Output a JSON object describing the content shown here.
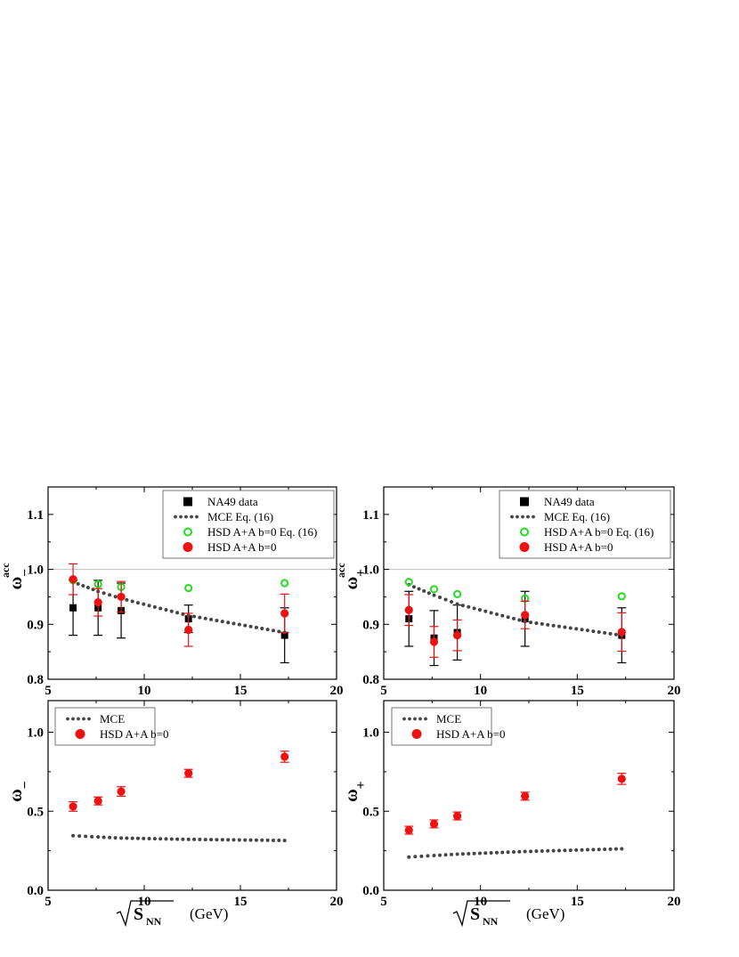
{
  "colors": {
    "nadata": "#000000",
    "mce": "#444444",
    "hsd_open": "#22dd22",
    "hsd_filled": "#ee1111",
    "refline": "#c0c0c0"
  },
  "xaxis": {
    "label": "(GeV)",
    "sqrt_subscript": "NN",
    "sqrt_letter": "S"
  },
  "chart_data": [
    {
      "type": "scatter",
      "panel": "top-left",
      "ylabel": "ω",
      "ylabel_sup": "acc",
      "ylabel_sub": "−",
      "xlim": [
        5,
        20
      ],
      "ylim": [
        0.8,
        1.15
      ],
      "xticks": [
        5,
        10,
        15,
        20
      ],
      "yticks": [
        0.8,
        0.9,
        1.0,
        1.1
      ],
      "reference_line": 1.0,
      "legend_position": "top-right",
      "series": [
        {
          "name": "NA49 data",
          "marker": "square",
          "color": "#000000",
          "x": [
            6.3,
            7.6,
            8.8,
            12.3,
            17.3
          ],
          "y": [
            0.93,
            0.93,
            0.925,
            0.91,
            0.88
          ],
          "err": [
            0.05,
            0.05,
            0.05,
            0.025,
            0.05
          ]
        },
        {
          "name": "MCE  Eq. (16)",
          "marker": "dots",
          "color": "#444444",
          "x": [
            6.3,
            7.6,
            8.8,
            12.3,
            17.3
          ],
          "y": [
            0.977,
            0.96,
            0.947,
            0.916,
            0.885
          ]
        },
        {
          "name": "HSD A+A b=0  Eq. (16)",
          "marker": "open-circle",
          "color": "#22dd22",
          "x": [
            6.3,
            7.6,
            8.8,
            12.3,
            17.3
          ],
          "y": [
            0.98,
            0.973,
            0.968,
            0.966,
            0.975
          ]
        },
        {
          "name": "HSD A+A b=0",
          "marker": "filled-circle",
          "color": "#ee1111",
          "x": [
            6.3,
            7.6,
            8.8,
            12.3,
            17.3
          ],
          "y": [
            0.982,
            0.94,
            0.95,
            0.89,
            0.92
          ],
          "err": [
            0.028,
            0.025,
            0.028,
            0.03,
            0.035
          ]
        }
      ]
    },
    {
      "type": "scatter",
      "panel": "top-right",
      "ylabel": "ω",
      "ylabel_sup": "acc",
      "ylabel_sub": "+",
      "xlim": [
        5,
        20
      ],
      "ylim": [
        0.8,
        1.15
      ],
      "xticks": [
        5,
        10,
        15,
        20
      ],
      "yticks": [
        0.8,
        0.9,
        1.0,
        1.1
      ],
      "reference_line": 1.0,
      "legend_position": "top-right",
      "series": [
        {
          "name": "NA49 data",
          "marker": "square",
          "color": "#000000",
          "x": [
            6.3,
            7.6,
            8.8,
            12.3,
            17.3
          ],
          "y": [
            0.91,
            0.875,
            0.885,
            0.91,
            0.88
          ],
          "err": [
            0.05,
            0.05,
            0.05,
            0.05,
            0.05
          ]
        },
        {
          "name": "MCE  Eq. (16)",
          "marker": "dots",
          "color": "#444444",
          "x": [
            6.3,
            7.6,
            8.8,
            12.3,
            17.3
          ],
          "y": [
            0.972,
            0.953,
            0.937,
            0.905,
            0.88
          ]
        },
        {
          "name": "HSD A+A b=0  Eq. (16)",
          "marker": "open-circle",
          "color": "#22dd22",
          "x": [
            6.3,
            7.6,
            8.8,
            12.3,
            17.3
          ],
          "y": [
            0.977,
            0.964,
            0.955,
            0.947,
            0.951
          ]
        },
        {
          "name": "HSD A+A b=0",
          "marker": "filled-circle",
          "color": "#ee1111",
          "x": [
            6.3,
            7.6,
            8.8,
            12.3,
            17.3
          ],
          "y": [
            0.926,
            0.868,
            0.88,
            0.917,
            0.886
          ],
          "err": [
            0.028,
            0.028,
            0.028,
            0.025,
            0.035
          ]
        }
      ]
    },
    {
      "type": "scatter",
      "panel": "bottom-left",
      "ylabel": "ω",
      "ylabel_sup": "",
      "ylabel_sub": "−",
      "xlim": [
        5,
        20
      ],
      "ylim": [
        0.0,
        1.2
      ],
      "xticks": [
        5,
        10,
        15,
        20
      ],
      "yticks": [
        0.0,
        0.5,
        1.0
      ],
      "legend_position": "top-left",
      "series": [
        {
          "name": "MCE",
          "marker": "dots",
          "color": "#444444",
          "x": [
            6.3,
            7.6,
            8.8,
            12.3,
            17.3
          ],
          "y": [
            0.345,
            0.337,
            0.33,
            0.322,
            0.315
          ]
        },
        {
          "name": "HSD A+A b=0",
          "marker": "filled-circle",
          "color": "#ee1111",
          "x": [
            6.3,
            7.6,
            8.8,
            12.3,
            17.3
          ],
          "y": [
            0.53,
            0.565,
            0.625,
            0.74,
            0.845
          ],
          "err": [
            0.03,
            0.025,
            0.03,
            0.025,
            0.035
          ]
        }
      ]
    },
    {
      "type": "scatter",
      "panel": "bottom-right",
      "ylabel": "ω",
      "ylabel_sup": "",
      "ylabel_sub": "+",
      "xlim": [
        5,
        20
      ],
      "ylim": [
        0.0,
        1.2
      ],
      "xticks": [
        5,
        10,
        15,
        20
      ],
      "yticks": [
        0.0,
        0.5,
        1.0
      ],
      "legend_position": "top-left",
      "series": [
        {
          "name": "MCE",
          "marker": "dots",
          "color": "#444444",
          "x": [
            6.3,
            7.6,
            8.8,
            12.3,
            17.3
          ],
          "y": [
            0.21,
            0.22,
            0.228,
            0.245,
            0.262
          ]
        },
        {
          "name": "HSD A+A b=0",
          "marker": "filled-circle",
          "color": "#ee1111",
          "x": [
            6.3,
            7.6,
            8.8,
            12.3,
            17.3
          ],
          "y": [
            0.38,
            0.42,
            0.47,
            0.595,
            0.705
          ],
          "err": [
            0.025,
            0.025,
            0.025,
            0.025,
            0.035
          ]
        }
      ]
    }
  ]
}
